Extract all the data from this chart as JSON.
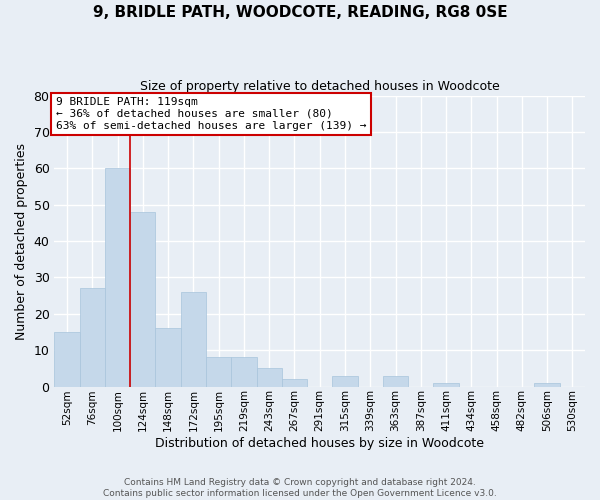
{
  "title": "9, BRIDLE PATH, WOODCOTE, READING, RG8 0SE",
  "subtitle": "Size of property relative to detached houses in Woodcote",
  "xlabel": "Distribution of detached houses by size in Woodcote",
  "ylabel": "Number of detached properties",
  "bar_color": "#c5d8ea",
  "bar_edge_color": "#a8c4dc",
  "background_color": "#e8eef5",
  "grid_color": "#ffffff",
  "categories": [
    "52sqm",
    "76sqm",
    "100sqm",
    "124sqm",
    "148sqm",
    "172sqm",
    "195sqm",
    "219sqm",
    "243sqm",
    "267sqm",
    "291sqm",
    "315sqm",
    "339sqm",
    "363sqm",
    "387sqm",
    "411sqm",
    "434sqm",
    "458sqm",
    "482sqm",
    "506sqm",
    "530sqm"
  ],
  "values": [
    15,
    27,
    60,
    48,
    16,
    26,
    8,
    8,
    5,
    2,
    0,
    3,
    0,
    3,
    0,
    1,
    0,
    0,
    0,
    1,
    0
  ],
  "ylim": [
    0,
    80
  ],
  "yticks": [
    0,
    10,
    20,
    30,
    40,
    50,
    60,
    70,
    80
  ],
  "property_label": "9 BRIDLE PATH: 119sqm",
  "pct_smaller": 36,
  "n_smaller": 80,
  "pct_larger": 63,
  "n_larger": 139,
  "vline_color": "#cc0000",
  "annotation_box_edge": "#cc0000",
  "footer_line1": "Contains HM Land Registry data © Crown copyright and database right 2024.",
  "footer_line2": "Contains public sector information licensed under the Open Government Licence v3.0."
}
